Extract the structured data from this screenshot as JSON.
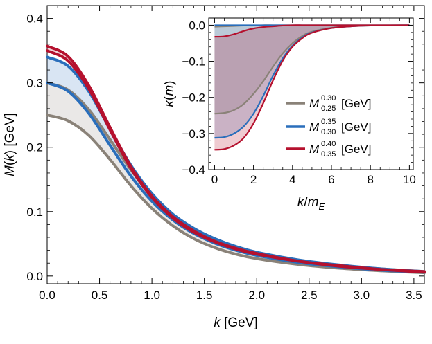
{
  "chart_data": [
    {
      "type": "line",
      "role": "main",
      "xlabel": "k [GeV]",
      "ylabel": "M(k) [GeV]",
      "xlim": [
        0,
        3.6
      ],
      "ylim": [
        -0.012,
        0.42
      ],
      "xticks": [
        "0.0",
        "0.5",
        "1.0",
        "1.5",
        "2.0",
        "2.5",
        "3.0",
        "3.5"
      ],
      "xtick_values": [
        0,
        0.5,
        1.0,
        1.5,
        2.0,
        2.5,
        3.0,
        3.5
      ],
      "yticks": [
        "0.0",
        "0.1",
        "0.2",
        "0.3",
        "0.4"
      ],
      "ytick_values": [
        0,
        0.1,
        0.2,
        0.3,
        0.4
      ],
      "x": [
        0.0,
        0.2,
        0.4,
        0.6,
        0.8,
        1.0,
        1.2,
        1.4,
        1.6,
        1.8,
        2.0,
        2.4,
        2.8,
        3.2,
        3.6
      ],
      "bands": [
        {
          "series": [
            0,
            1
          ],
          "color": "#8a8278"
        },
        {
          "series": [
            2,
            3
          ],
          "color": "#2a6ebb"
        },
        {
          "series": [
            4,
            5
          ],
          "color": "#b5112e"
        }
      ],
      "series": [
        {
          "band": "gray",
          "color": "#8a8278",
          "values": [
            0.25,
            0.241,
            0.218,
            0.181,
            0.14,
            0.105,
            0.078,
            0.058,
            0.044,
            0.034,
            0.027,
            0.018,
            0.012,
            0.008,
            0.005
          ]
        },
        {
          "band": "gray",
          "color": "#8a8278",
          "values": [
            0.3,
            0.289,
            0.258,
            0.212,
            0.165,
            0.125,
            0.095,
            0.073,
            0.057,
            0.045,
            0.036,
            0.024,
            0.016,
            0.011,
            0.007
          ]
        },
        {
          "band": "blue",
          "color": "#2a6ebb",
          "values": [
            0.3,
            0.287,
            0.252,
            0.203,
            0.155,
            0.116,
            0.087,
            0.066,
            0.051,
            0.04,
            0.032,
            0.021,
            0.014,
            0.009,
            0.006
          ]
        },
        {
          "band": "blue",
          "color": "#2a6ebb",
          "values": [
            0.34,
            0.326,
            0.286,
            0.228,
            0.172,
            0.128,
            0.096,
            0.074,
            0.058,
            0.046,
            0.037,
            0.025,
            0.017,
            0.011,
            0.007
          ]
        },
        {
          "band": "red",
          "color": "#b5112e",
          "values": [
            0.35,
            0.334,
            0.29,
            0.227,
            0.167,
            0.122,
            0.09,
            0.068,
            0.053,
            0.042,
            0.034,
            0.023,
            0.015,
            0.01,
            0.006
          ]
        },
        {
          "band": "red",
          "color": "#b5112e",
          "values": [
            0.357,
            0.341,
            0.295,
            0.231,
            0.17,
            0.124,
            0.092,
            0.07,
            0.054,
            0.043,
            0.035,
            0.023,
            0.016,
            0.01,
            0.007
          ]
        }
      ]
    },
    {
      "type": "line",
      "role": "inset",
      "xlabel": "k/m_E",
      "ylabel": "κ(m)",
      "xlim": [
        -0.3,
        10.2
      ],
      "ylim": [
        -0.4,
        0.02
      ],
      "xticks": [
        "0",
        "2",
        "4",
        "6",
        "8",
        "10"
      ],
      "xtick_values": [
        0,
        2,
        4,
        6,
        8,
        10
      ],
      "yticks": [
        "0.0",
        "−0.1",
        "−0.2",
        "−0.3",
        "−0.4"
      ],
      "ytick_values": [
        0,
        -0.1,
        -0.2,
        -0.3,
        -0.4
      ],
      "x": [
        0,
        0.5,
        1,
        1.5,
        2,
        2.5,
        3,
        3.5,
        4,
        4.5,
        5,
        6,
        7,
        8,
        10
      ],
      "series": [
        {
          "color": "#8a8278",
          "values": [
            -0.245,
            -0.243,
            -0.235,
            -0.218,
            -0.19,
            -0.155,
            -0.115,
            -0.078,
            -0.05,
            -0.03,
            -0.018,
            -0.007,
            -0.003,
            -0.001,
            0.0
          ],
          "upper": [
            -0.004,
            -0.003,
            -0.002,
            -0.001,
            -0.001,
            0.0,
            0.0,
            0.0,
            0.0,
            0.0,
            0.0,
            0.0,
            0.0,
            0.0,
            0.0
          ]
        },
        {
          "color": "#2a6ebb",
          "values": [
            -0.312,
            -0.31,
            -0.3,
            -0.28,
            -0.245,
            -0.196,
            -0.14,
            -0.092,
            -0.057,
            -0.034,
            -0.02,
            -0.008,
            -0.003,
            -0.001,
            0.0
          ],
          "upper": [
            0.0,
            0.0,
            0.0,
            0.0,
            0.0,
            0.0,
            0.0,
            0.0,
            0.0,
            0.0,
            0.0,
            0.0,
            0.0,
            0.0,
            0.0
          ]
        },
        {
          "color": "#b5112e",
          "values": [
            -0.345,
            -0.343,
            -0.333,
            -0.312,
            -0.272,
            -0.216,
            -0.153,
            -0.098,
            -0.06,
            -0.036,
            -0.021,
            -0.008,
            -0.003,
            -0.001,
            0.0
          ],
          "upper": [
            -0.032,
            -0.031,
            -0.025,
            -0.016,
            -0.009,
            -0.005,
            -0.003,
            -0.001,
            0.0,
            0.0,
            0.0,
            0.0,
            0.0,
            0.0,
            0.0
          ]
        }
      ],
      "legend": {
        "position": "right",
        "entries": [
          {
            "base": "M",
            "sup": "0.30",
            "sub": "0.25",
            "unit": "[GeV]",
            "color": "#8a8278"
          },
          {
            "base": "M",
            "sup": "0.35",
            "sub": "0.30",
            "unit": "[GeV]",
            "color": "#2a6ebb"
          },
          {
            "base": "M",
            "sup": "0.40",
            "sub": "0.35",
            "unit": "[GeV]",
            "color": "#b5112e"
          }
        ]
      }
    }
  ]
}
